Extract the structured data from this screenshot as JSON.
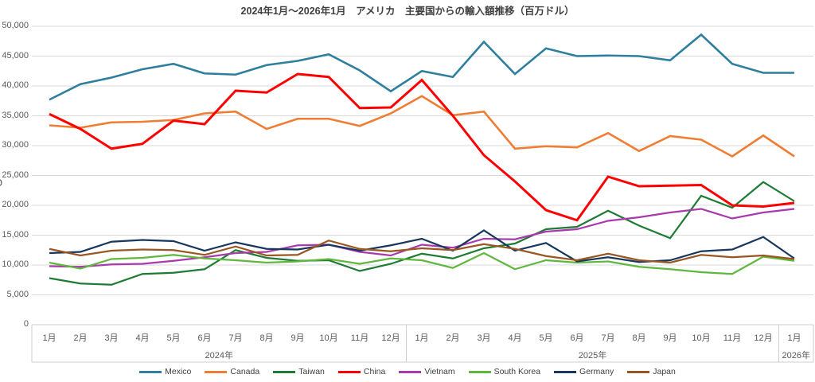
{
  "chart_data": {
    "type": "line",
    "title": "2024年1月～2026年1月　アメリカ　主要国からの輸入額推移（百万ドル）",
    "unit": "百万ドル",
    "ylim": [
      0,
      50000
    ],
    "y_tick_step": 5000,
    "y_tick_labels": [
      "0",
      "5,000",
      "10,000",
      "15,000",
      "20,000",
      "25,000",
      "30,000",
      "35,000",
      "40,000",
      "45,000",
      "50,000"
    ],
    "y_axis_clipped_fragment": "O",
    "grid": true,
    "legend_position": "bottom",
    "x_tick_labels": [
      "1月",
      "2月",
      "3月",
      "4月",
      "5月",
      "6月",
      "7月",
      "8月",
      "9月",
      "10月",
      "11月",
      "12月",
      "1月",
      "2月",
      "3月",
      "4月",
      "5月",
      "6月",
      "7月",
      "8月",
      "9月",
      "10月",
      "11月",
      "12月",
      "1月"
    ],
    "year_groups": [
      {
        "label": "2024年",
        "count": 12
      },
      {
        "label": "2025年",
        "count": 12
      },
      {
        "label": "2026年",
        "count": 1
      }
    ],
    "series": [
      {
        "name": "Mexico",
        "color": "#2e7e9e",
        "values": [
          37700,
          40300,
          41400,
          42800,
          43700,
          42100,
          41900,
          43500,
          44200,
          45300,
          42600,
          39100,
          42500,
          41500,
          47400,
          42000,
          46300,
          45000,
          45100,
          45000,
          44300,
          48600,
          43700,
          42200,
          42200
        ]
      },
      {
        "name": "Canada",
        "color": "#ef7d33",
        "values": [
          33400,
          33000,
          33900,
          34000,
          34300,
          35400,
          35700,
          32800,
          34500,
          34500,
          33300,
          35400,
          38300,
          35100,
          35700,
          29500,
          29900,
          29700,
          32100,
          29100,
          31600,
          31000,
          28200,
          31700,
          28200
        ]
      },
      {
        "name": "Taiwan",
        "color": "#1e7b34",
        "values": [
          7800,
          6900,
          6700,
          8500,
          8700,
          9300,
          12500,
          11200,
          10700,
          10800,
          9000,
          10200,
          11900,
          11100,
          12800,
          13600,
          16000,
          16400,
          19100,
          16600,
          14500,
          21600,
          19600,
          23900,
          20700
        ]
      },
      {
        "name": "China",
        "color": "#ff0000",
        "values": [
          35300,
          32800,
          29500,
          30300,
          34200,
          33600,
          39200,
          38900,
          42000,
          41500,
          36300,
          36400,
          41000,
          35000,
          28400,
          24000,
          19200,
          17500,
          24800,
          23200,
          23300,
          23400,
          20000,
          19800,
          20400
        ]
      },
      {
        "name": "Vietnam",
        "color": "#a93aad",
        "values": [
          9800,
          9700,
          10100,
          10200,
          10700,
          11300,
          12000,
          12200,
          13300,
          13400,
          12200,
          11600,
          13400,
          12900,
          14400,
          14300,
          15600,
          16000,
          17400,
          18000,
          18800,
          19400,
          17800,
          18800,
          19400
        ]
      },
      {
        "name": "South Korea",
        "color": "#5fb73d",
        "values": [
          10400,
          9400,
          11000,
          11200,
          11700,
          11100,
          10800,
          10400,
          10600,
          11000,
          10200,
          11100,
          10800,
          9500,
          12000,
          9300,
          10800,
          10400,
          10600,
          9700,
          9300,
          8800,
          8500,
          11400,
          10700
        ]
      },
      {
        "name": "Germany",
        "color": "#17375e",
        "values": [
          12000,
          12200,
          13900,
          14200,
          14000,
          12400,
          13800,
          12700,
          12600,
          13400,
          12400,
          13300,
          14400,
          12400,
          15800,
          12400,
          13700,
          10600,
          11300,
          10500,
          10800,
          12300,
          12600,
          14700,
          11100
        ]
      },
      {
        "name": "Japan",
        "color": "#9a5620",
        "values": [
          12700,
          11600,
          12400,
          12600,
          12500,
          11700,
          13100,
          11600,
          11700,
          14100,
          12700,
          12300,
          12800,
          12500,
          13500,
          12700,
          11500,
          10800,
          11900,
          10800,
          10400,
          11700,
          11300,
          11600,
          11000
        ]
      }
    ]
  }
}
